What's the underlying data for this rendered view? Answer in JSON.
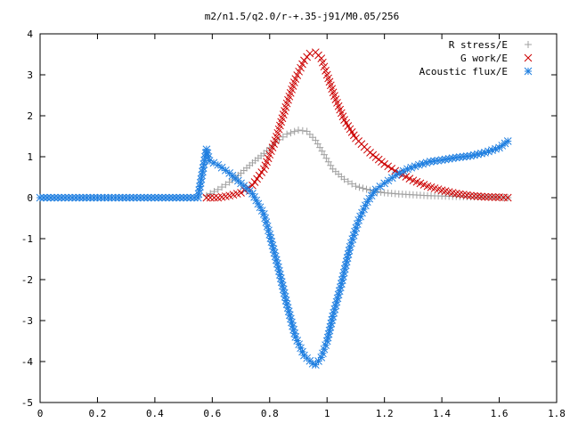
{
  "chart_data": {
    "type": "scatter",
    "title": "m2/n1.5/q2.0/r-+.35-j91/M0.05/256",
    "xlabel": "",
    "ylabel": "",
    "xlim": [
      0,
      1.8
    ],
    "ylim": [
      -5,
      4
    ],
    "grid": false,
    "legend_position": "top-right",
    "x_ticks": [
      "0",
      "0.2",
      "0.4",
      "0.6",
      "0.8",
      "1",
      "1.2",
      "1.4",
      "1.6",
      "1.8"
    ],
    "y_ticks": [
      "4",
      "3",
      "2",
      "1",
      "0",
      "-1",
      "-2",
      "-3",
      "-4",
      "-5"
    ],
    "series": [
      {
        "name": "R stress/E",
        "marker": "+",
        "color": "#a0a0a0",
        "x": [
          0.58,
          0.62,
          0.66,
          0.7,
          0.74,
          0.78,
          0.82,
          0.86,
          0.9,
          0.93,
          0.96,
          0.99,
          1.02,
          1.06,
          1.1,
          1.15,
          1.2,
          1.25,
          1.3,
          1.35,
          1.4,
          1.45,
          1.5,
          1.55,
          1.6,
          1.63
        ],
        "y": [
          0.05,
          0.2,
          0.38,
          0.6,
          0.85,
          1.08,
          1.35,
          1.55,
          1.65,
          1.62,
          1.4,
          1.05,
          0.7,
          0.45,
          0.28,
          0.18,
          0.12,
          0.09,
          0.07,
          0.05,
          0.04,
          0.03,
          0.02,
          0.02,
          0.01,
          0.0
        ]
      },
      {
        "name": "G work/E",
        "marker": "x",
        "color": "#cc0000",
        "x": [
          0.58,
          0.62,
          0.66,
          0.7,
          0.74,
          0.78,
          0.82,
          0.86,
          0.89,
          0.92,
          0.94,
          0.96,
          0.98,
          1.0,
          1.03,
          1.06,
          1.1,
          1.15,
          1.2,
          1.25,
          1.3,
          1.35,
          1.4,
          1.45,
          1.5,
          1.55,
          1.6,
          1.63
        ],
        "y": [
          0.0,
          0.0,
          0.05,
          0.12,
          0.3,
          0.7,
          1.4,
          2.3,
          2.9,
          3.35,
          3.52,
          3.55,
          3.4,
          3.0,
          2.4,
          1.9,
          1.45,
          1.1,
          0.82,
          0.6,
          0.42,
          0.28,
          0.18,
          0.1,
          0.05,
          0.02,
          0.01,
          0.0
        ]
      },
      {
        "name": "Acoustic flux/E",
        "marker": "*",
        "color": "#1e7ee0",
        "x": [
          0.0,
          0.05,
          0.1,
          0.15,
          0.2,
          0.25,
          0.3,
          0.35,
          0.4,
          0.45,
          0.5,
          0.55,
          0.58,
          0.59,
          0.62,
          0.66,
          0.7,
          0.74,
          0.78,
          0.8,
          0.83,
          0.86,
          0.89,
          0.92,
          0.95,
          0.96,
          0.98,
          1.0,
          1.02,
          1.05,
          1.08,
          1.11,
          1.14,
          1.17,
          1.2,
          1.24,
          1.28,
          1.32,
          1.36,
          1.4,
          1.45,
          1.5,
          1.55,
          1.6,
          1.63
        ],
        "y": [
          0.0,
          0.0,
          0.0,
          0.0,
          0.0,
          0.0,
          0.0,
          0.0,
          0.0,
          0.0,
          0.0,
          0.0,
          1.18,
          0.9,
          0.8,
          0.6,
          0.35,
          0.1,
          -0.4,
          -0.9,
          -1.7,
          -2.6,
          -3.4,
          -3.85,
          -4.05,
          -4.08,
          -3.9,
          -3.5,
          -2.9,
          -2.1,
          -1.2,
          -0.55,
          -0.1,
          0.2,
          0.35,
          0.55,
          0.7,
          0.8,
          0.88,
          0.92,
          0.98,
          1.02,
          1.1,
          1.22,
          1.38
        ]
      }
    ]
  }
}
